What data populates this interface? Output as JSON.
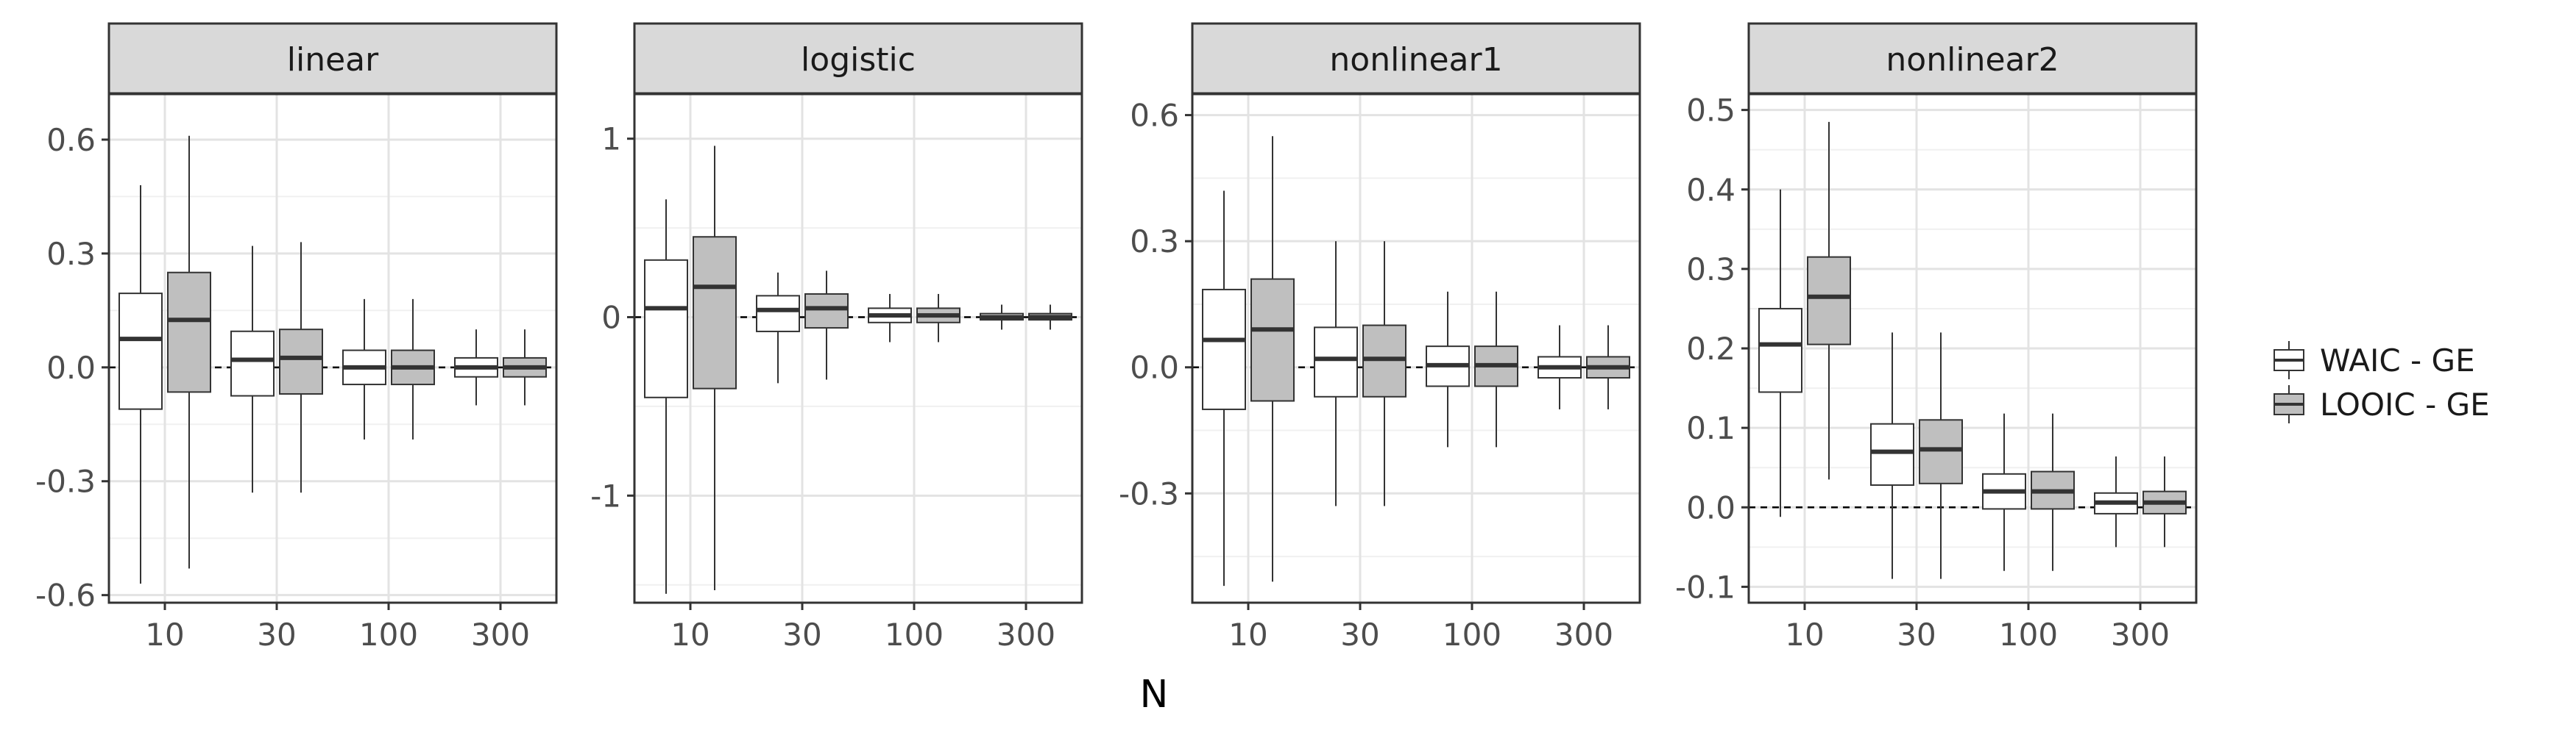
{
  "chart_data": {
    "type": "boxplot",
    "xlabel": "N",
    "categories": [
      "10",
      "30",
      "100",
      "300"
    ],
    "legend": {
      "placement": "right",
      "entries": [
        {
          "label": "WAIC - GE",
          "fill": "#ffffff"
        },
        {
          "label": "LOOIC - GE",
          "fill": "#bfbfbf"
        }
      ]
    },
    "reference_line": {
      "y": 0,
      "style": "dashed"
    },
    "grid": true,
    "panels": [
      {
        "title": "linear",
        "ylim": [
          -0.62,
          0.72
        ],
        "yticks": [
          -0.6,
          -0.3,
          0.0,
          0.3,
          0.6
        ],
        "ytick_labels": [
          "-0.6",
          "-0.3",
          "0.0",
          "0.3",
          "0.6"
        ],
        "series": [
          {
            "name": "WAIC - GE",
            "boxes": [
              {
                "x": "10",
                "min": -0.57,
                "q1": -0.11,
                "median": 0.075,
                "q3": 0.195,
                "max": 0.48
              },
              {
                "x": "30",
                "min": -0.33,
                "q1": -0.075,
                "median": 0.02,
                "q3": 0.095,
                "max": 0.32
              },
              {
                "x": "100",
                "min": -0.19,
                "q1": -0.045,
                "median": 0.0,
                "q3": 0.045,
                "max": 0.18
              },
              {
                "x": "300",
                "min": -0.1,
                "q1": -0.025,
                "median": 0.0,
                "q3": 0.025,
                "max": 0.1
              }
            ]
          },
          {
            "name": "LOOIC - GE",
            "boxes": [
              {
                "x": "10",
                "min": -0.53,
                "q1": -0.065,
                "median": 0.125,
                "q3": 0.25,
                "max": 0.61
              },
              {
                "x": "30",
                "min": -0.33,
                "q1": -0.07,
                "median": 0.025,
                "q3": 0.1,
                "max": 0.33
              },
              {
                "x": "100",
                "min": -0.19,
                "q1": -0.045,
                "median": 0.0,
                "q3": 0.045,
                "max": 0.18
              },
              {
                "x": "300",
                "min": -0.1,
                "q1": -0.025,
                "median": 0.0,
                "q3": 0.025,
                "max": 0.1
              }
            ]
          }
        ]
      },
      {
        "title": "logistic",
        "ylim": [
          -1.6,
          1.25
        ],
        "yticks": [
          -1,
          0,
          1
        ],
        "ytick_labels": [
          "-1",
          "0",
          "1"
        ],
        "series": [
          {
            "name": "WAIC - GE",
            "boxes": [
              {
                "x": "10",
                "min": -1.55,
                "q1": -0.45,
                "median": 0.05,
                "q3": 0.32,
                "max": 0.66
              },
              {
                "x": "30",
                "min": -0.37,
                "q1": -0.08,
                "median": 0.04,
                "q3": 0.12,
                "max": 0.25
              },
              {
                "x": "100",
                "min": -0.14,
                "q1": -0.03,
                "median": 0.01,
                "q3": 0.05,
                "max": 0.13
              },
              {
                "x": "300",
                "min": -0.07,
                "q1": -0.015,
                "median": 0.0,
                "q3": 0.02,
                "max": 0.07
              }
            ]
          },
          {
            "name": "LOOIC - GE",
            "boxes": [
              {
                "x": "10",
                "min": -1.53,
                "q1": -0.4,
                "median": 0.17,
                "q3": 0.45,
                "max": 0.96
              },
              {
                "x": "30",
                "min": -0.35,
                "q1": -0.06,
                "median": 0.05,
                "q3": 0.13,
                "max": 0.26
              },
              {
                "x": "100",
                "min": -0.14,
                "q1": -0.03,
                "median": 0.01,
                "q3": 0.05,
                "max": 0.13
              },
              {
                "x": "300",
                "min": -0.07,
                "q1": -0.015,
                "median": 0.0,
                "q3": 0.02,
                "max": 0.07
              }
            ]
          }
        ]
      },
      {
        "title": "nonlinear1",
        "ylim": [
          -0.56,
          0.65
        ],
        "yticks": [
          -0.3,
          0.0,
          0.3,
          0.6
        ],
        "ytick_labels": [
          "-0.3",
          "0.0",
          "0.3",
          "0.6"
        ],
        "series": [
          {
            "name": "WAIC - GE",
            "boxes": [
              {
                "x": "10",
                "min": -0.52,
                "q1": -0.1,
                "median": 0.065,
                "q3": 0.185,
                "max": 0.42
              },
              {
                "x": "30",
                "min": -0.33,
                "q1": -0.07,
                "median": 0.02,
                "q3": 0.095,
                "max": 0.3
              },
              {
                "x": "100",
                "min": -0.19,
                "q1": -0.045,
                "median": 0.005,
                "q3": 0.05,
                "max": 0.18
              },
              {
                "x": "300",
                "min": -0.1,
                "q1": -0.025,
                "median": 0.0,
                "q3": 0.025,
                "max": 0.1
              }
            ]
          },
          {
            "name": "LOOIC - GE",
            "boxes": [
              {
                "x": "10",
                "min": -0.51,
                "q1": -0.08,
                "median": 0.09,
                "q3": 0.21,
                "max": 0.55
              },
              {
                "x": "30",
                "min": -0.33,
                "q1": -0.07,
                "median": 0.02,
                "q3": 0.1,
                "max": 0.3
              },
              {
                "x": "100",
                "min": -0.19,
                "q1": -0.045,
                "median": 0.005,
                "q3": 0.05,
                "max": 0.18
              },
              {
                "x": "300",
                "min": -0.1,
                "q1": -0.025,
                "median": 0.0,
                "q3": 0.025,
                "max": 0.1
              }
            ]
          }
        ]
      },
      {
        "title": "nonlinear2",
        "ylim": [
          -0.12,
          0.52
        ],
        "yticks": [
          -0.1,
          0.0,
          0.1,
          0.2,
          0.3,
          0.4,
          0.5
        ],
        "ytick_labels": [
          "-0.1",
          "0.0",
          "0.1",
          "0.2",
          "0.3",
          "0.4",
          "0.5"
        ],
        "series": [
          {
            "name": "WAIC - GE",
            "boxes": [
              {
                "x": "10",
                "min": -0.012,
                "q1": 0.145,
                "median": 0.205,
                "q3": 0.25,
                "max": 0.4
              },
              {
                "x": "30",
                "min": -0.09,
                "q1": 0.028,
                "median": 0.07,
                "q3": 0.105,
                "max": 0.22
              },
              {
                "x": "100",
                "min": -0.08,
                "q1": -0.002,
                "median": 0.02,
                "q3": 0.042,
                "max": 0.118
              },
              {
                "x": "300",
                "min": -0.05,
                "q1": -0.008,
                "median": 0.006,
                "q3": 0.018,
                "max": 0.064
              }
            ]
          },
          {
            "name": "LOOIC - GE",
            "boxes": [
              {
                "x": "10",
                "min": 0.035,
                "q1": 0.205,
                "median": 0.265,
                "q3": 0.315,
                "max": 0.485
              },
              {
                "x": "30",
                "min": -0.09,
                "q1": 0.03,
                "median": 0.073,
                "q3": 0.11,
                "max": 0.22
              },
              {
                "x": "100",
                "min": -0.08,
                "q1": -0.002,
                "median": 0.02,
                "q3": 0.045,
                "max": 0.118
              },
              {
                "x": "300",
                "min": -0.05,
                "q1": -0.008,
                "median": 0.006,
                "q3": 0.02,
                "max": 0.064
              }
            ]
          }
        ]
      }
    ]
  }
}
